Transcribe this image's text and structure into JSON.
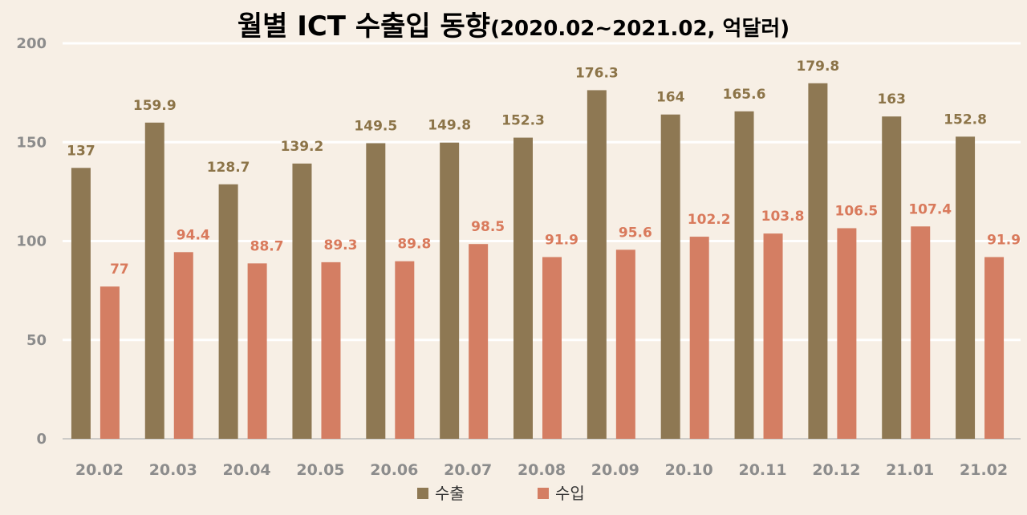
{
  "chart_data": {
    "type": "bar",
    "title": "월별 ICT 수출입 동향",
    "subtitle": "(2020.02~2021.02, 억달러)",
    "xlabel": "",
    "ylabel": "",
    "ylim": [
      0,
      200
    ],
    "yticks": [
      "0",
      "50",
      "100",
      "150",
      "200"
    ],
    "grid": true,
    "legend_position": "bottom",
    "categories": [
      "20.02",
      "20.03",
      "20.04",
      "20.05",
      "20.06",
      "20.07",
      "20.08",
      "20.09",
      "20.10",
      "20.11",
      "20.12",
      "21.01",
      "21.02"
    ],
    "series": [
      {
        "name": "수출",
        "color": "#8e7853",
        "values": [
          137,
          159.9,
          128.7,
          139.2,
          149.5,
          149.8,
          152.3,
          176.3,
          164,
          165.6,
          179.8,
          163,
          152.8
        ],
        "labels": [
          "137",
          "159.9",
          "128.7",
          "139.2",
          "149.5",
          "149.8",
          "152.3",
          "176.3",
          "164",
          "165.6",
          "179.8",
          "163",
          "152.8"
        ]
      },
      {
        "name": "수입",
        "color": "#d47e63",
        "values": [
          77,
          94.4,
          88.7,
          89.3,
          89.8,
          98.5,
          91.9,
          95.6,
          102.2,
          103.8,
          106.5,
          107.4,
          91.9
        ],
        "labels": [
          "77",
          "94.4",
          "88.7",
          "89.3",
          "89.8",
          "98.5",
          "91.9",
          "95.6",
          "102.2",
          "103.8",
          "106.5",
          "107.4",
          "91.9"
        ]
      }
    ]
  }
}
